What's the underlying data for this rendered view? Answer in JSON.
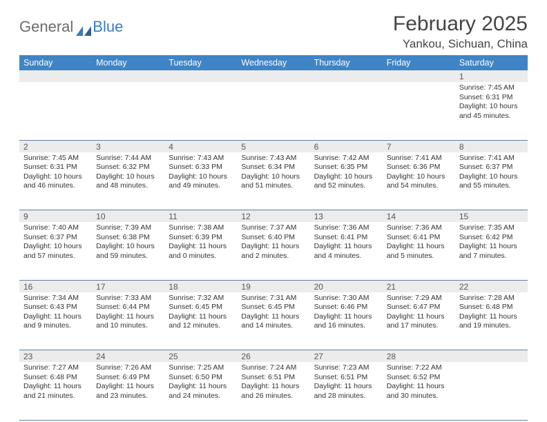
{
  "brand": {
    "part1": "General",
    "part2": "Blue"
  },
  "title": "February 2025",
  "location": "Yankou, Sichuan, China",
  "colors": {
    "header_bg": "#3f84c4",
    "header_text": "#ffffff",
    "daynum_bg": "#ececec",
    "rule": "#5b7fa3",
    "brand_gray": "#6b6b6b",
    "brand_blue": "#3b7bbf"
  },
  "weekdays": [
    "Sunday",
    "Monday",
    "Tuesday",
    "Wednesday",
    "Thursday",
    "Friday",
    "Saturday"
  ],
  "weeks": [
    {
      "nums": [
        "",
        "",
        "",
        "",
        "",
        "",
        "1"
      ],
      "cells": [
        null,
        null,
        null,
        null,
        null,
        null,
        {
          "sunrise": "Sunrise: 7:45 AM",
          "sunset": "Sunset: 6:31 PM",
          "daylight": "Daylight: 10 hours and 45 minutes."
        }
      ]
    },
    {
      "nums": [
        "2",
        "3",
        "4",
        "5",
        "6",
        "7",
        "8"
      ],
      "cells": [
        {
          "sunrise": "Sunrise: 7:45 AM",
          "sunset": "Sunset: 6:31 PM",
          "daylight": "Daylight: 10 hours and 46 minutes."
        },
        {
          "sunrise": "Sunrise: 7:44 AM",
          "sunset": "Sunset: 6:32 PM",
          "daylight": "Daylight: 10 hours and 48 minutes."
        },
        {
          "sunrise": "Sunrise: 7:43 AM",
          "sunset": "Sunset: 6:33 PM",
          "daylight": "Daylight: 10 hours and 49 minutes."
        },
        {
          "sunrise": "Sunrise: 7:43 AM",
          "sunset": "Sunset: 6:34 PM",
          "daylight": "Daylight: 10 hours and 51 minutes."
        },
        {
          "sunrise": "Sunrise: 7:42 AM",
          "sunset": "Sunset: 6:35 PM",
          "daylight": "Daylight: 10 hours and 52 minutes."
        },
        {
          "sunrise": "Sunrise: 7:41 AM",
          "sunset": "Sunset: 6:36 PM",
          "daylight": "Daylight: 10 hours and 54 minutes."
        },
        {
          "sunrise": "Sunrise: 7:41 AM",
          "sunset": "Sunset: 6:37 PM",
          "daylight": "Daylight: 10 hours and 55 minutes."
        }
      ]
    },
    {
      "nums": [
        "9",
        "10",
        "11",
        "12",
        "13",
        "14",
        "15"
      ],
      "cells": [
        {
          "sunrise": "Sunrise: 7:40 AM",
          "sunset": "Sunset: 6:37 PM",
          "daylight": "Daylight: 10 hours and 57 minutes."
        },
        {
          "sunrise": "Sunrise: 7:39 AM",
          "sunset": "Sunset: 6:38 PM",
          "daylight": "Daylight: 10 hours and 59 minutes."
        },
        {
          "sunrise": "Sunrise: 7:38 AM",
          "sunset": "Sunset: 6:39 PM",
          "daylight": "Daylight: 11 hours and 0 minutes."
        },
        {
          "sunrise": "Sunrise: 7:37 AM",
          "sunset": "Sunset: 6:40 PM",
          "daylight": "Daylight: 11 hours and 2 minutes."
        },
        {
          "sunrise": "Sunrise: 7:36 AM",
          "sunset": "Sunset: 6:41 PM",
          "daylight": "Daylight: 11 hours and 4 minutes."
        },
        {
          "sunrise": "Sunrise: 7:36 AM",
          "sunset": "Sunset: 6:41 PM",
          "daylight": "Daylight: 11 hours and 5 minutes."
        },
        {
          "sunrise": "Sunrise: 7:35 AM",
          "sunset": "Sunset: 6:42 PM",
          "daylight": "Daylight: 11 hours and 7 minutes."
        }
      ]
    },
    {
      "nums": [
        "16",
        "17",
        "18",
        "19",
        "20",
        "21",
        "22"
      ],
      "cells": [
        {
          "sunrise": "Sunrise: 7:34 AM",
          "sunset": "Sunset: 6:43 PM",
          "daylight": "Daylight: 11 hours and 9 minutes."
        },
        {
          "sunrise": "Sunrise: 7:33 AM",
          "sunset": "Sunset: 6:44 PM",
          "daylight": "Daylight: 11 hours and 10 minutes."
        },
        {
          "sunrise": "Sunrise: 7:32 AM",
          "sunset": "Sunset: 6:45 PM",
          "daylight": "Daylight: 11 hours and 12 minutes."
        },
        {
          "sunrise": "Sunrise: 7:31 AM",
          "sunset": "Sunset: 6:45 PM",
          "daylight": "Daylight: 11 hours and 14 minutes."
        },
        {
          "sunrise": "Sunrise: 7:30 AM",
          "sunset": "Sunset: 6:46 PM",
          "daylight": "Daylight: 11 hours and 16 minutes."
        },
        {
          "sunrise": "Sunrise: 7:29 AM",
          "sunset": "Sunset: 6:47 PM",
          "daylight": "Daylight: 11 hours and 17 minutes."
        },
        {
          "sunrise": "Sunrise: 7:28 AM",
          "sunset": "Sunset: 6:48 PM",
          "daylight": "Daylight: 11 hours and 19 minutes."
        }
      ]
    },
    {
      "nums": [
        "23",
        "24",
        "25",
        "26",
        "27",
        "28",
        ""
      ],
      "cells": [
        {
          "sunrise": "Sunrise: 7:27 AM",
          "sunset": "Sunset: 6:48 PM",
          "daylight": "Daylight: 11 hours and 21 minutes."
        },
        {
          "sunrise": "Sunrise: 7:26 AM",
          "sunset": "Sunset: 6:49 PM",
          "daylight": "Daylight: 11 hours and 23 minutes."
        },
        {
          "sunrise": "Sunrise: 7:25 AM",
          "sunset": "Sunset: 6:50 PM",
          "daylight": "Daylight: 11 hours and 24 minutes."
        },
        {
          "sunrise": "Sunrise: 7:24 AM",
          "sunset": "Sunset: 6:51 PM",
          "daylight": "Daylight: 11 hours and 26 minutes."
        },
        {
          "sunrise": "Sunrise: 7:23 AM",
          "sunset": "Sunset: 6:51 PM",
          "daylight": "Daylight: 11 hours and 28 minutes."
        },
        {
          "sunrise": "Sunrise: 7:22 AM",
          "sunset": "Sunset: 6:52 PM",
          "daylight": "Daylight: 11 hours and 30 minutes."
        },
        null
      ]
    }
  ]
}
